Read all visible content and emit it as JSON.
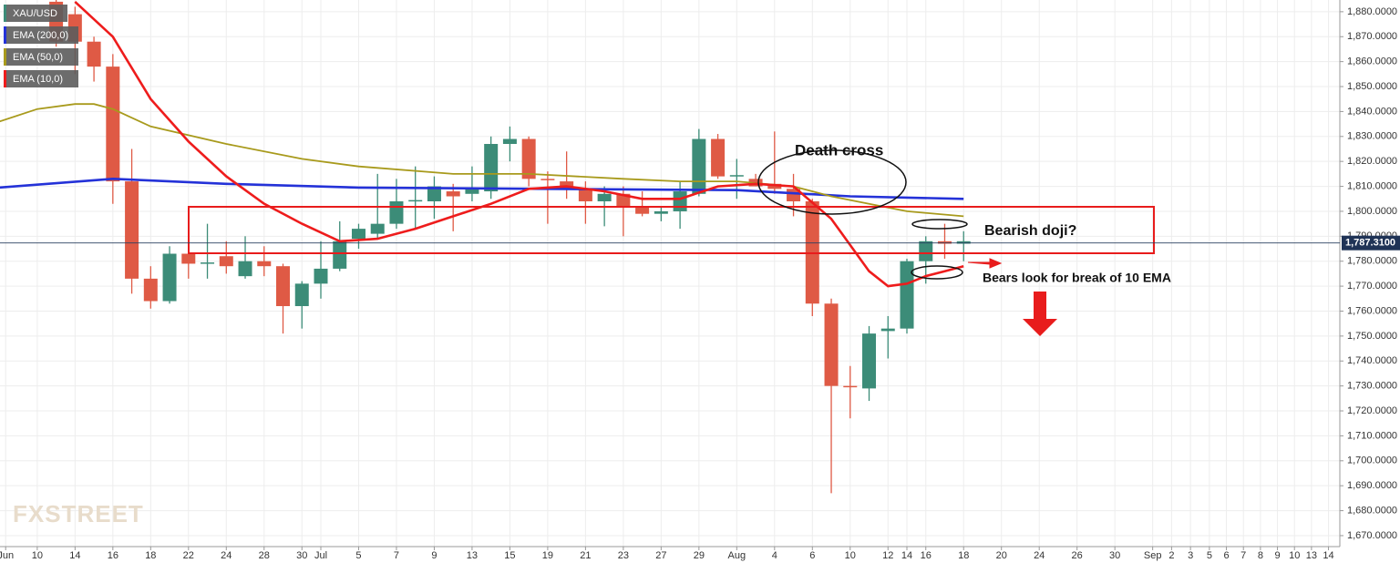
{
  "chart_data": {
    "type": "candlestick",
    "name": "XAU/USD",
    "up_color": "#3c8c78",
    "down_color": "#df5a45",
    "x": [
      2,
      3,
      4,
      5,
      6,
      7,
      8,
      9,
      10,
      11,
      12,
      13,
      14,
      15,
      16,
      17,
      18,
      19,
      20,
      21,
      22,
      23,
      24,
      25,
      26,
      27,
      28,
      29,
      30,
      31,
      32,
      33,
      34,
      35,
      36,
      37,
      38,
      39,
      40,
      41,
      42,
      43,
      44,
      45,
      46,
      47,
      48,
      49,
      50
    ],
    "open": [
      1884,
      1879,
      1868,
      1858,
      1812,
      1773,
      1764,
      1783,
      1779,
      1782,
      1774,
      1780,
      1778,
      1762,
      1771,
      1777,
      1789,
      1791,
      1795,
      1804,
      1804,
      1808,
      1807,
      1808,
      1827,
      1829,
      1813,
      1812,
      1809,
      1804,
      1807,
      1802,
      1799,
      1800,
      1807,
      1829,
      1814,
      1813,
      1811,
      1809,
      1804,
      1763,
      1730,
      1729,
      1752,
      1753,
      1780,
      1788,
      1787
    ],
    "high": [
      1886,
      1882,
      1870,
      1863,
      1825,
      1778,
      1786,
      1786,
      1795,
      1788,
      1790,
      1786,
      1779,
      1772,
      1788,
      1796,
      1795,
      1815,
      1813,
      1818,
      1814,
      1811,
      1818,
      1830,
      1834,
      1830,
      1816,
      1824,
      1812,
      1810,
      1810,
      1808,
      1802,
      1812,
      1833,
      1831,
      1821,
      1815,
      1832,
      1815,
      1805,
      1765,
      1738,
      1754,
      1758,
      1781,
      1790,
      1795,
      1792
    ],
    "low": [
      1866,
      1855,
      1852,
      1803,
      1767,
      1761,
      1763,
      1773,
      1773,
      1775,
      1773,
      1774,
      1751,
      1753,
      1765,
      1776,
      1785,
      1789,
      1793,
      1793,
      1797,
      1792,
      1804,
      1805,
      1820,
      1810,
      1795,
      1805,
      1795,
      1794,
      1790,
      1798,
      1796,
      1793,
      1806,
      1813,
      1805,
      1810,
      1807,
      1798,
      1758,
      1687,
      1717,
      1724,
      1741,
      1751,
      1771,
      1781,
      1780
    ],
    "close": [
      1868,
      1868,
      1858,
      1812,
      1773,
      1764,
      1783,
      1779,
      1779.5,
      1778,
      1780,
      1778,
      1762,
      1771,
      1777,
      1788,
      1793,
      1795,
      1804,
      1804.5,
      1810,
      1806,
      1809,
      1827,
      1829,
      1813,
      1812.5,
      1809,
      1804,
      1807,
      1802,
      1799,
      1800,
      1808,
      1829,
      1814,
      1814.5,
      1810,
      1809,
      1804,
      1763,
      1730,
      1729.5,
      1751,
      1753,
      1780,
      1788,
      1787,
      1788
    ],
    "series": [
      {
        "name": "EMA (200,0)",
        "color": "#2432d8",
        "x": [
          -1,
          5,
          11,
          18,
          28,
          38,
          44,
          50
        ],
        "values": [
          1809.5,
          1813,
          1811,
          1809.5,
          1809,
          1808.5,
          1806,
          1805
        ]
      },
      {
        "name": "EMA (50,0)",
        "color": "#a89a1c",
        "x": [
          -1,
          1,
          3,
          4,
          5,
          7,
          11,
          15,
          18,
          23,
          27,
          32,
          35,
          38,
          41,
          43,
          45,
          47,
          50
        ],
        "values": [
          1836,
          1841,
          1843,
          1843,
          1841,
          1834,
          1827,
          1821,
          1818,
          1815,
          1815,
          1813,
          1812,
          1812,
          1810,
          1806,
          1803,
          1800,
          1798
        ]
      },
      {
        "name": "EMA (10,0)",
        "color": "#ee1c1c",
        "x": [
          3,
          5,
          7,
          9,
          11,
          13,
          15,
          17,
          19,
          21,
          23,
          25,
          27,
          29,
          31,
          33,
          35,
          37,
          39,
          41,
          43,
          45,
          46,
          47,
          48,
          49,
          50
        ],
        "values": [
          1884,
          1870,
          1845,
          1828,
          1814,
          1803,
          1795,
          1788,
          1789,
          1793,
          1798,
          1803,
          1809,
          1810,
          1808,
          1805,
          1805,
          1810,
          1811,
          1810,
          1797,
          1776,
          1770,
          1771,
          1774,
          1776,
          1778
        ]
      }
    ],
    "last_price": {
      "value": 1787.31,
      "label": "1,787.3100"
    },
    "xlim": [
      -0.97,
      69.9
    ],
    "ylim": [
      1665.6,
      1884.7
    ],
    "xticks": [
      {
        "value": -0.67,
        "label": "Jun"
      },
      {
        "value": 1,
        "label": "10"
      },
      {
        "value": 3,
        "label": "14"
      },
      {
        "value": 5,
        "label": "16"
      },
      {
        "value": 7,
        "label": "18"
      },
      {
        "value": 9,
        "label": "22"
      },
      {
        "value": 11,
        "label": "24"
      },
      {
        "value": 13,
        "label": "28"
      },
      {
        "value": 15,
        "label": "30"
      },
      {
        "value": 16,
        "label": "Jul"
      },
      {
        "value": 18,
        "label": "5"
      },
      {
        "value": 20,
        "label": "7"
      },
      {
        "value": 22,
        "label": "9"
      },
      {
        "value": 24,
        "label": "13"
      },
      {
        "value": 26,
        "label": "15"
      },
      {
        "value": 28,
        "label": "19"
      },
      {
        "value": 30,
        "label": "21"
      },
      {
        "value": 32,
        "label": "23"
      },
      {
        "value": 34,
        "label": "27"
      },
      {
        "value": 36,
        "label": "29"
      },
      {
        "value": 38,
        "label": "Aug"
      },
      {
        "value": 40,
        "label": "4"
      },
      {
        "value": 42,
        "label": "6"
      },
      {
        "value": 44,
        "label": "10"
      },
      {
        "value": 46,
        "label": "12"
      },
      {
        "value": 47,
        "label": "14"
      },
      {
        "value": 48,
        "label": "16"
      },
      {
        "value": 50,
        "label": "18"
      },
      {
        "value": 52,
        "label": "20"
      },
      {
        "value": 54,
        "label": "24"
      },
      {
        "value": 56,
        "label": "26"
      },
      {
        "value": 58,
        "label": "30"
      },
      {
        "value": 60,
        "label": "Sep"
      },
      {
        "value": 61,
        "label": "2"
      },
      {
        "value": 62,
        "label": "3"
      },
      {
        "value": 63,
        "label": "5"
      },
      {
        "value": 63.9,
        "label": "6"
      },
      {
        "value": 64.8,
        "label": "7"
      },
      {
        "value": 65.7,
        "label": "8"
      },
      {
        "value": 66.6,
        "label": "9"
      },
      {
        "value": 67.5,
        "label": "10"
      },
      {
        "value": 68.4,
        "label": "13"
      },
      {
        "value": 69.3,
        "label": "14"
      }
    ],
    "yticks": [
      {
        "value": 1670,
        "label": "1,670.0000"
      },
      {
        "value": 1680,
        "label": "1,680.0000"
      },
      {
        "value": 1690,
        "label": "1,690.0000"
      },
      {
        "value": 1700,
        "label": "1,700.0000"
      },
      {
        "value": 1710,
        "label": "1,710.0000"
      },
      {
        "value": 1720,
        "label": "1,720.0000"
      },
      {
        "value": 1730,
        "label": "1,730.0000"
      },
      {
        "value": 1740,
        "label": "1,740.0000"
      },
      {
        "value": 1750,
        "label": "1,750.0000"
      },
      {
        "value": 1760,
        "label": "1,760.0000"
      },
      {
        "value": 1770,
        "label": "1,770.0000"
      },
      {
        "value": 1780,
        "label": "1,780.0000"
      },
      {
        "value": 1790,
        "label": "1,790.0000"
      },
      {
        "value": 1800,
        "label": "1,800.0000"
      },
      {
        "value": 1810,
        "label": "1,810.0000"
      },
      {
        "value": 1820,
        "label": "1,820.0000"
      },
      {
        "value": 1830,
        "label": "1,830.0000"
      },
      {
        "value": 1840,
        "label": "1,840.0000"
      },
      {
        "value": 1850,
        "label": "1,850.0000"
      },
      {
        "value": 1860,
        "label": "1,860.0000"
      },
      {
        "value": 1870,
        "label": "1,870.0000"
      },
      {
        "value": 1880,
        "label": "1,880.0000"
      }
    ],
    "grid": true,
    "annotations": [
      "Death cross",
      "Bearish doji?",
      "Bears look for break of 10 EMA"
    ],
    "watermark": "FXSTREET"
  }
}
